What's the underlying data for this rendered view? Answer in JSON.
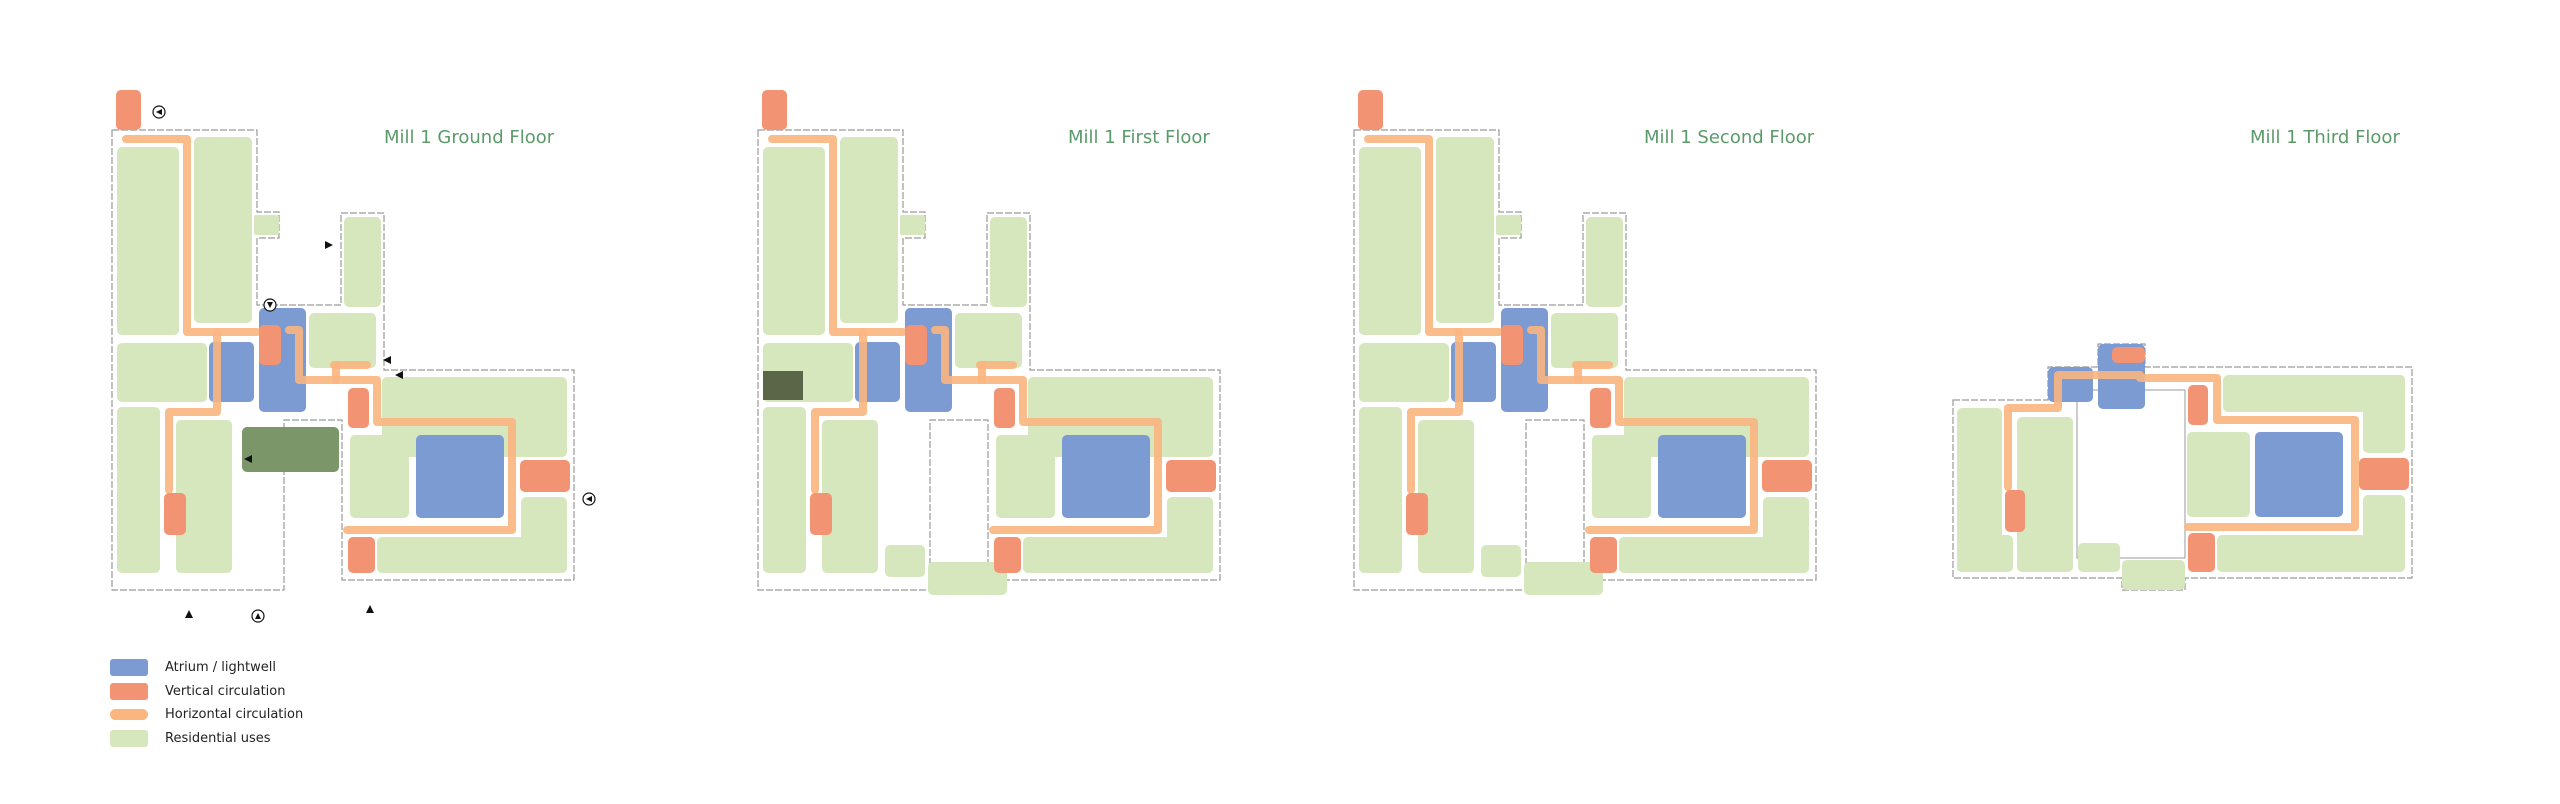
{
  "floors": [
    {
      "title": "Mill 1 Ground Floor"
    },
    {
      "title": "Mill 1 First Floor"
    },
    {
      "title": "Mill 1 Second Floor"
    },
    {
      "title": "Mill 1 Third Floor"
    }
  ],
  "legend": [
    {
      "label": "Atrium / lightwell",
      "color": "#7b9bd2"
    },
    {
      "label": "Vertical circulation",
      "color": "#f29373"
    },
    {
      "label": "Horizontal circulation",
      "color": "#fbb57f"
    },
    {
      "label": "Residential uses",
      "color": "#d6e6bd"
    }
  ],
  "colors": {
    "title": "#5b9a6a",
    "wall": "#9a9a9a",
    "dark_green_ground": "#7b9668",
    "dark_green_first": "#5a6647"
  }
}
